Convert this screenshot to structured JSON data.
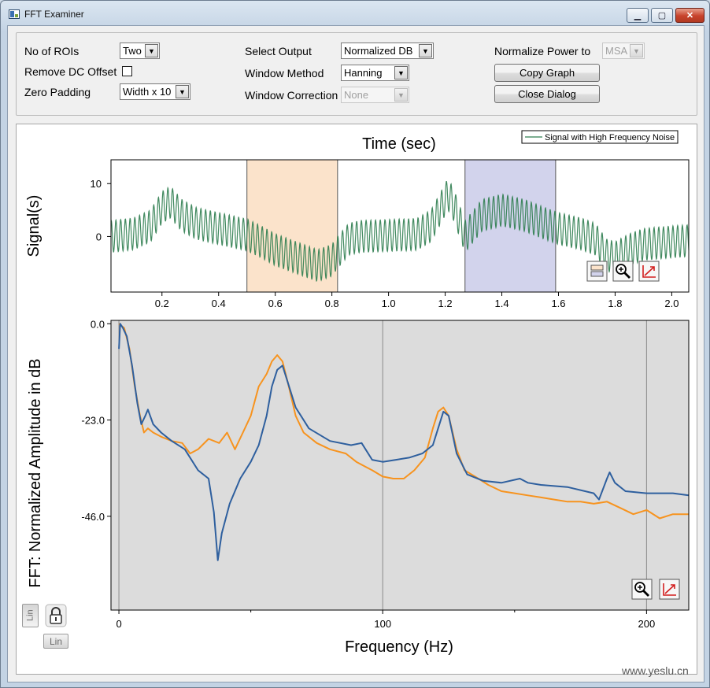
{
  "window": {
    "title": "FFT Examiner",
    "minimize_glyph": "▁",
    "maximize_glyph": "▢",
    "close_glyph": "✕"
  },
  "controls": {
    "no_of_rois": {
      "label": "No of ROIs",
      "value": "Two"
    },
    "remove_dc_offset": {
      "label": "Remove DC Offset",
      "checked": false
    },
    "zero_padding": {
      "label": "Zero Padding",
      "value": "Width x 10"
    },
    "select_output": {
      "label": "Select Output",
      "value": "Normalized DB"
    },
    "window_method": {
      "label": "Window Method",
      "value": "Hanning"
    },
    "window_correction": {
      "label": "Window Correction",
      "value": "None",
      "disabled": true
    },
    "normalize_power": {
      "label": "Normalize Power to",
      "value": "MSA",
      "disabled": true
    },
    "copy_graph_label": "Copy Graph",
    "close_dialog_label": "Close Dialog",
    "dropdown_glyph": "▼"
  },
  "icons": {
    "roi-icon": "roi-icon",
    "zoom-icon": "magnifier-icon",
    "rescale-icon": "rescale-axes-icon",
    "lock-icon": "padlock-icon"
  },
  "colors": {
    "signal_line": "#2e7d4f",
    "roi1_fill": "#fbe3cb",
    "roi2_fill": "#d2d3ec",
    "fft_roi1": "#f7931e",
    "fft_roi2": "#2e5f9e",
    "fft_bg": "#dcdcdc",
    "close_red": "#c7422b"
  },
  "bottom": {
    "lin_y_label": "Lin",
    "lin_x_label": "Lin"
  },
  "watermark": "www.yeslu.cn",
  "chart_data": [
    {
      "type": "line",
      "title": "Time (sec)",
      "xlabel": "",
      "ylabel": "Signal(s)",
      "xlim": [
        0.02,
        2.06
      ],
      "ylim": [
        -10.5,
        14.5
      ],
      "xticks": [
        0.2,
        0.4,
        0.6,
        0.8,
        1.0,
        1.2,
        1.4,
        1.6,
        1.8,
        2.0
      ],
      "xtick_labels": [
        "0.2",
        "0.4",
        "0.6",
        "0.8",
        "1.0",
        "1.2",
        "1.4",
        "1.6",
        "1.8",
        "2.0"
      ],
      "yticks": [
        0,
        10
      ],
      "ytick_labels": [
        "0",
        "10"
      ],
      "legend": {
        "text": "Signal with High Frequency Noise",
        "placement": "top-right"
      },
      "rois": [
        {
          "x0": 0.5,
          "x1": 0.82
        },
        {
          "x0": 1.27,
          "x1": 1.59
        }
      ],
      "series": [
        {
          "name": "Signal with High Frequency Noise",
          "noise_freq_hz": 60,
          "noise_amp": 3.0,
          "envelope": {
            "x": [
              0.02,
              0.1,
              0.16,
              0.2,
              0.23,
              0.27,
              0.32,
              0.4,
              0.46,
              0.5,
              0.55,
              0.6,
              0.65,
              0.7,
              0.75,
              0.8,
              0.82,
              0.86,
              0.9,
              1.0,
              1.1,
              1.15,
              1.18,
              1.21,
              1.23,
              1.27,
              1.33,
              1.4,
              1.48,
              1.55,
              1.6,
              1.68,
              1.73,
              1.77,
              1.8,
              1.85,
              1.9,
              2.0,
              2.06
            ],
            "y": [
              0,
              0.5,
              2,
              5.5,
              6.5,
              4,
              2.5,
              1.5,
              0.8,
              0.3,
              -1,
              -2.5,
              -3.5,
              -4.5,
              -5.5,
              -4.5,
              -3,
              -0.5,
              0,
              0.2,
              0.4,
              2,
              5,
              8,
              6,
              0,
              4,
              5,
              4,
              2.5,
              1.5,
              0.5,
              -0.5,
              -3.5,
              -4,
              -2.5,
              -1.5,
              -1,
              -0.8
            ]
          }
        }
      ]
    },
    {
      "type": "line",
      "title": "",
      "xlabel": "Frequency (Hz)",
      "ylabel": "FFT: Normalized Amplitude in dB",
      "xlim": [
        -3,
        216
      ],
      "ylim": [
        -68.4,
        0.8
      ],
      "xticks": [
        0,
        100,
        200
      ],
      "xtick_labels": [
        "0",
        "100",
        "200"
      ],
      "minor_xticks": [
        50,
        150
      ],
      "yticks": [
        0,
        -23,
        -46
      ],
      "ytick_labels": [
        "0.0",
        "-23.0",
        "-46.0"
      ],
      "grid_x": [
        0,
        100,
        200
      ],
      "series": [
        {
          "name": "",
          "color_key": "fft_roi1",
          "x": [
            0,
            2,
            4,
            6,
            8,
            9.5,
            11,
            13,
            16,
            20,
            24,
            27,
            30,
            34,
            38,
            41,
            44,
            47,
            50,
            53,
            56,
            58,
            60,
            62,
            64,
            67,
            70,
            75,
            80,
            86,
            90,
            93,
            96,
            100,
            104,
            108,
            112,
            116,
            119,
            121,
            123,
            125,
            128,
            131,
            135,
            140,
            145,
            150,
            155,
            160,
            165,
            170,
            175,
            180,
            185,
            190,
            195,
            200,
            205,
            210,
            216
          ],
          "y": [
            0,
            -1,
            -6,
            -15,
            -22,
            -26,
            -25,
            -26,
            -27,
            -28,
            -28.5,
            -31,
            -30,
            -27.5,
            -28.5,
            -26,
            -30,
            -26,
            -22,
            -15,
            -12,
            -9,
            -7.5,
            -9,
            -14,
            -22,
            -26,
            -28.5,
            -30,
            -31,
            -33,
            -34,
            -35,
            -36.5,
            -37,
            -37,
            -35,
            -32,
            -25,
            -21,
            -20,
            -22,
            -30,
            -35,
            -36.5,
            -38.5,
            -40,
            -40.5,
            -41,
            -41.5,
            -42,
            -42.5,
            -42.5,
            -43,
            -42.5,
            -44,
            -45.5,
            -44.5,
            -46.5,
            -45.5,
            -45.5
          ]
        },
        {
          "name": "",
          "color_key": "fft_roi2",
          "x": [
            0,
            0.5,
            1.5,
            3,
            5,
            7,
            8.5,
            10,
            11,
            13,
            16,
            20,
            25,
            30,
            34,
            36,
            37.5,
            39,
            42,
            46,
            50,
            53,
            56,
            58,
            60,
            62,
            64,
            67,
            72,
            80,
            88,
            92,
            96,
            100,
            105,
            110,
            115,
            119,
            121,
            123,
            125,
            128,
            132,
            138,
            145,
            152,
            155,
            160,
            170,
            180,
            182,
            185,
            186,
            188,
            192,
            200,
            210,
            216
          ],
          "y": [
            -6,
            0,
            -1,
            -3,
            -10,
            -19,
            -24,
            -22,
            -20.5,
            -24,
            -26,
            -28,
            -30,
            -35,
            -37,
            -45,
            -56.5,
            -50,
            -43,
            -37,
            -33,
            -29,
            -22,
            -15,
            -11,
            -10,
            -14,
            -20,
            -25,
            -28,
            -29,
            -28.5,
            -32.5,
            -33,
            -32.5,
            -32,
            -31,
            -29,
            -25,
            -21,
            -22,
            -31,
            -36,
            -37.5,
            -38,
            -37,
            -38,
            -38.5,
            -39,
            -40.5,
            -42,
            -37,
            -35.5,
            -38,
            -40,
            -40.5,
            -40.5,
            -41
          ]
        }
      ]
    }
  ]
}
